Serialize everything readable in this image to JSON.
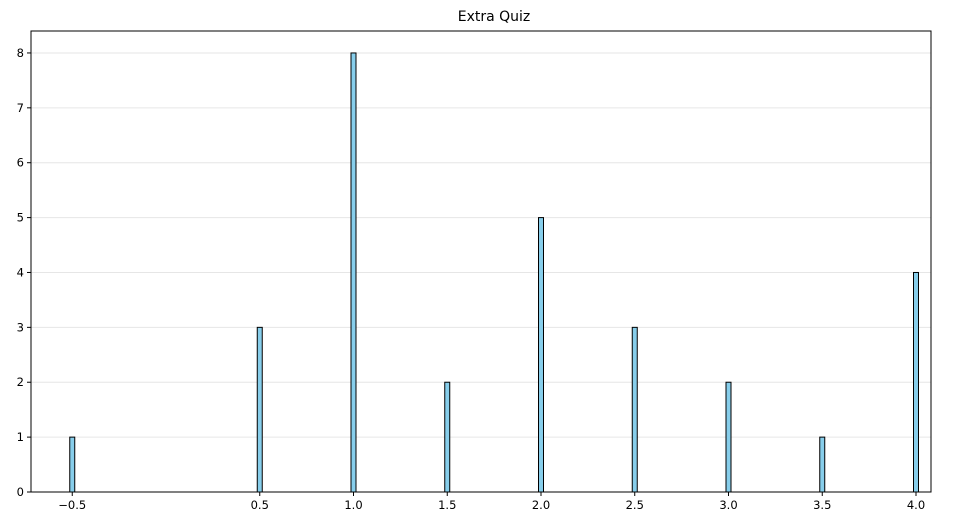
{
  "chart_data": {
    "type": "bar",
    "title": "Extra Quiz",
    "xlabel": "",
    "ylabel": "",
    "x": [
      -0.5,
      0.5,
      1.0,
      1.5,
      2.0,
      2.5,
      3.0,
      3.5,
      4.0
    ],
    "values": [
      1,
      3,
      8,
      2,
      5,
      3,
      2,
      1,
      4
    ],
    "x_tick_labels": [
      "−0.5",
      "0.5",
      "1.0",
      "1.5",
      "2.0",
      "2.5",
      "3.0",
      "3.5",
      "4.0"
    ],
    "y_ticks": [
      0,
      1,
      2,
      3,
      4,
      5,
      6,
      7,
      8
    ],
    "ylim": [
      0,
      8.4
    ],
    "xlim": [
      -0.72,
      4.08
    ],
    "grid": "y",
    "bar_color": "#87CEEB",
    "edge_color": "#000000"
  }
}
